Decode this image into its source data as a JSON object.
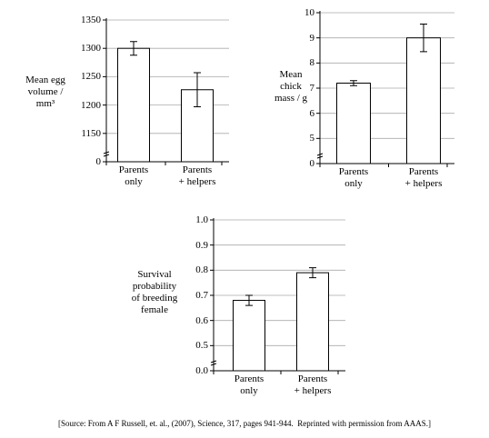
{
  "chart_data": [
    {
      "type": "bar",
      "ylabel": "Mean egg\nvolume /\nmm³",
      "categories": [
        "Parents\nonly",
        "Parents\n+ helpers"
      ],
      "values": [
        1300,
        1227
      ],
      "errors": [
        12,
        30
      ],
      "color": "#ffffff",
      "ylim": [
        1100,
        1350
      ],
      "yticks": [
        0,
        1150,
        1200,
        1250,
        1300,
        1350
      ],
      "axis_break": true,
      "grid": true
    },
    {
      "type": "bar",
      "ylabel": "Mean\nchick\nmass / g",
      "categories": [
        "Parents\nonly",
        "Parents\n+ helpers"
      ],
      "values": [
        7.2,
        9.0
      ],
      "errors": [
        0.1,
        0.55
      ],
      "color": "#ffffff",
      "ylim": [
        4,
        10
      ],
      "yticks": [
        0,
        5,
        6,
        7,
        8,
        9,
        10
      ],
      "axis_break": true,
      "grid": true
    },
    {
      "type": "bar",
      "ylabel": "Survival\nprobability\nof breeding\nfemale",
      "categories": [
        "Parents\nonly",
        "Parents\n+ helpers"
      ],
      "values": [
        0.68,
        0.79
      ],
      "errors": [
        0.02,
        0.02
      ],
      "color": "#ffffff",
      "ylim": [
        0.4,
        1.0
      ],
      "yticks": [
        {
          "value": 0,
          "label": "0.0"
        },
        0.5,
        0.6,
        0.7,
        0.8,
        0.9,
        {
          "value": 1,
          "label": "1.0"
        }
      ],
      "axis_break": true,
      "grid": true
    }
  ],
  "source": "[Source: From A F Russell, et. al., (2007), Science, 317, pages 941-944.  Reprinted with permission from AAAS.]"
}
